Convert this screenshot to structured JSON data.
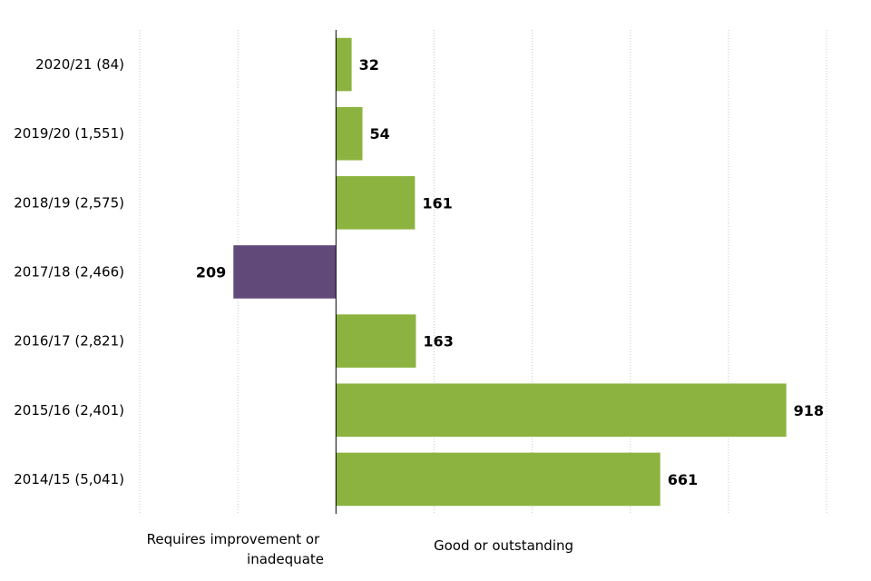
{
  "chart_data": {
    "type": "bar",
    "orientation": "horizontal",
    "categories": [
      "2020/21 (84)",
      "2019/20 (1,551)",
      "2018/19 (2,575)",
      "2017/18 (2,466)",
      "2016/17 (2,821)",
      "2015/16 (2,401)",
      "2014/15 (5,041)"
    ],
    "values": [
      32,
      54,
      161,
      -209,
      163,
      918,
      661
    ],
    "value_labels": [
      "32",
      "54",
      "161",
      "209",
      "163",
      "918",
      "661"
    ],
    "xlim": [
      -400,
      1000
    ],
    "grid": true,
    "negative_axis_label": "Requires improvement or inadequate",
    "negative_axis_label_lines": [
      "Requires improvement or",
      "inadequate"
    ],
    "positive_axis_label": "Good or outstanding",
    "colors": {
      "positive": "#8cb33f",
      "negative": "#614a7a"
    }
  }
}
